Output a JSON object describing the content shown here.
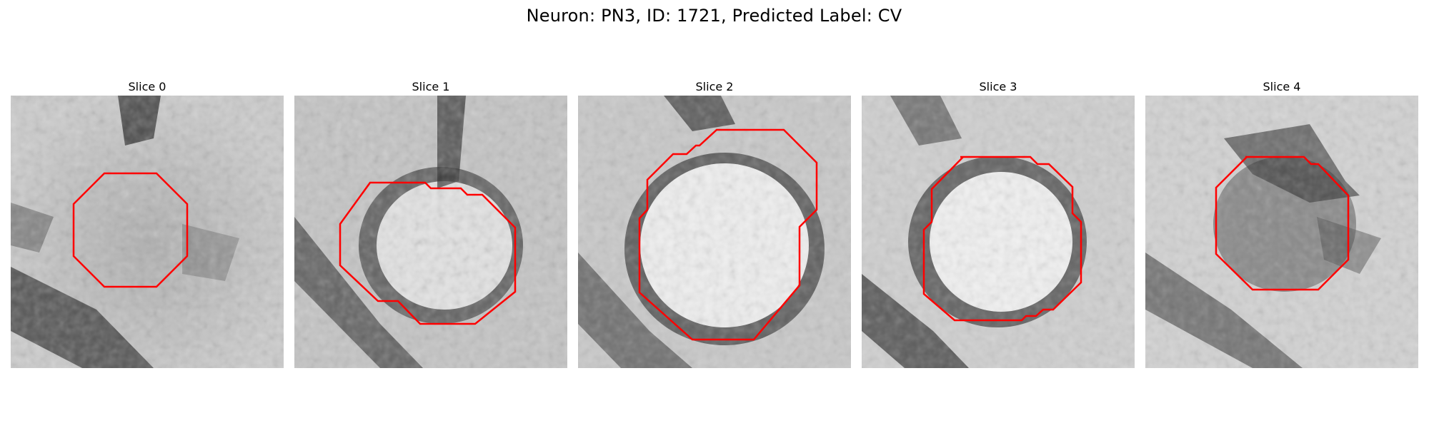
{
  "figure": {
    "title": "Neuron: PN3, ID: 1721, Predicted Label: CV",
    "contour_color": "#ff0000"
  },
  "slices": [
    {
      "title": "Slice 0"
    },
    {
      "title": "Slice 1"
    },
    {
      "title": "Slice 2"
    },
    {
      "title": "Slice 3"
    },
    {
      "title": "Slice 4"
    }
  ]
}
